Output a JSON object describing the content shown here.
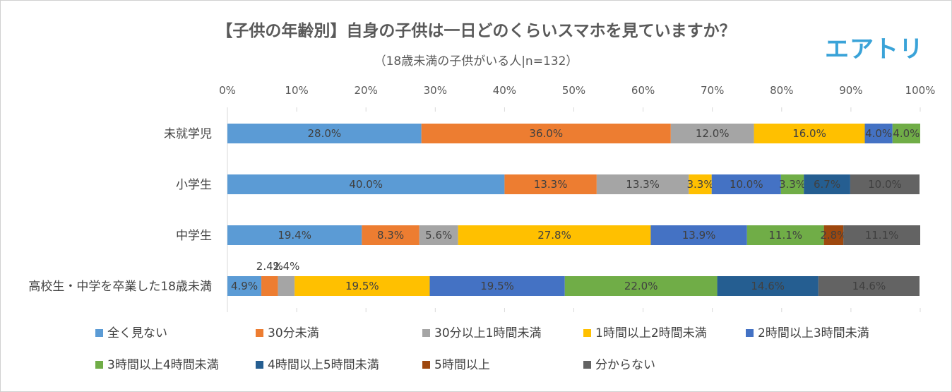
{
  "header": {
    "title": "【子供の年齢別】自身の子供は一日どのくらいスマホを見ていますか？",
    "subtitle": "（18歳未満の子供がいる人|n=132）",
    "logo": "エアトリ"
  },
  "chart_data": {
    "type": "bar",
    "orientation": "horizontal-stacked-100",
    "title": "【子供の年齢別】自身の子供は一日どのくらいスマホを見ていますか？",
    "subtitle": "（18歳未満の子供がいる人|n=132）",
    "xlim": [
      0,
      100
    ],
    "x_ticks": [
      "0%",
      "10%",
      "20%",
      "30%",
      "40%",
      "50%",
      "60%",
      "70%",
      "80%",
      "90%",
      "100%"
    ],
    "categories": [
      "未就学児",
      "小学生",
      "中学生",
      "高校生・中学を卒業した18歳未満"
    ],
    "series": [
      {
        "name": "全く見ない",
        "color": "#5B9BD5",
        "values": [
          28.0,
          40.0,
          19.4,
          4.9
        ],
        "labels": [
          "28.0%",
          "40.0%",
          "19.4%",
          "4.9%"
        ]
      },
      {
        "name": "30分未満",
        "color": "#ED7D31",
        "values": [
          36.0,
          13.3,
          8.3,
          2.4
        ],
        "labels": [
          "36.0%",
          "13.3%",
          "8.3%",
          "2.4%"
        ]
      },
      {
        "name": "30分以上1時間未満",
        "color": "#A5A5A5",
        "values": [
          12.0,
          13.3,
          5.6,
          2.4
        ],
        "labels": [
          "12.0%",
          "13.3%",
          "5.6%",
          "2.4%"
        ]
      },
      {
        "name": "1時間以上2時間未満",
        "color": "#FFC000",
        "values": [
          16.0,
          3.3,
          27.8,
          19.5
        ],
        "labels": [
          "16.0%",
          "3.3%",
          "27.8%",
          "19.5%"
        ]
      },
      {
        "name": "2時間以上3時間未満",
        "color": "#4472C4",
        "values": [
          4.0,
          10.0,
          13.9,
          19.5
        ],
        "labels": [
          "4.0%",
          "10.0%",
          "13.9%",
          "19.5%"
        ]
      },
      {
        "name": "3時間以上4時間未満",
        "color": "#70AD47",
        "values": [
          4.0,
          3.3,
          11.1,
          22.0
        ],
        "labels": [
          "4.0%",
          "3.3%",
          "11.1%",
          "22.0%"
        ]
      },
      {
        "name": "4時間以上5時間未満",
        "color": "#255E91",
        "values": [
          0,
          6.7,
          0,
          14.6
        ],
        "labels": [
          "",
          "6.7%",
          "",
          "14.6%"
        ]
      },
      {
        "name": "5時間以上",
        "color": "#9E480E",
        "values": [
          0,
          0,
          2.8,
          0
        ],
        "labels": [
          "",
          "",
          "2.8%",
          ""
        ]
      },
      {
        "name": "分からない",
        "color": "#636363",
        "values": [
          0,
          10.0,
          11.1,
          14.6
        ],
        "labels": [
          "",
          "10.0%",
          "11.1%",
          "14.6%"
        ]
      }
    ],
    "legend": "bottom"
  }
}
